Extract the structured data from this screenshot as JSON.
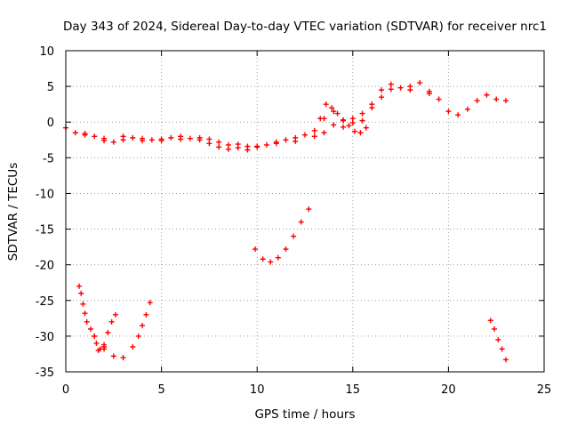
{
  "chart_data": {
    "type": "scatter",
    "title": "Day 343 of 2024, Sidereal Day-to-day VTEC variation (SDTVAR) for receiver nrc1",
    "xlabel": "GPS time / hours",
    "ylabel": "SDTVAR / TECUs",
    "xlim": [
      0,
      25
    ],
    "ylim": [
      -35,
      10
    ],
    "xticks": [
      0,
      5,
      10,
      15,
      20,
      25
    ],
    "yticks": [
      10,
      5,
      0,
      -5,
      -10,
      -15,
      -20,
      -25,
      -30,
      -35
    ],
    "grid": true,
    "marker": "+",
    "marker_color": "#ff0000",
    "series": [
      {
        "name": "main-band-a",
        "x": [
          0.0,
          0.5,
          1.0,
          1.5,
          2.0,
          2.5,
          3.0,
          3.5,
          4.0,
          4.5,
          5.0,
          5.5,
          6.0,
          6.5,
          7.0,
          7.5,
          8.0,
          8.5,
          9.0,
          9.5,
          10.0,
          10.5,
          11.0,
          11.5,
          12.0,
          12.5,
          13.0,
          13.5,
          14.0,
          14.5,
          15.0,
          15.5,
          16.0,
          16.5,
          17.0,
          17.5,
          18.0,
          18.5,
          19.0,
          19.5,
          20.0,
          20.5,
          21.0,
          21.5,
          22.0,
          22.5,
          23.0
        ],
        "y": [
          -0.8,
          -1.5,
          -1.8,
          -2.0,
          -2.3,
          -2.8,
          -2.5,
          -2.2,
          -2.3,
          -2.5,
          -2.4,
          -2.2,
          -2.0,
          -2.3,
          -2.5,
          -3.0,
          -3.5,
          -3.8,
          -3.6,
          -3.9,
          -3.5,
          -3.2,
          -2.8,
          -2.5,
          -2.2,
          -1.8,
          -1.2,
          0.5,
          1.5,
          0.2,
          0.5,
          1.2,
          2.5,
          4.5,
          5.3,
          4.8,
          4.5,
          5.5,
          4.3,
          3.2,
          1.5,
          1.0,
          1.8,
          3.0,
          3.8,
          3.2,
          3.0
        ]
      },
      {
        "name": "main-band-b",
        "x": [
          1.0,
          2.0,
          3.0,
          4.0,
          5.0,
          6.0,
          7.0,
          7.5,
          8.0,
          8.5,
          9.0,
          9.5,
          10.0,
          11.0,
          12.0,
          13.0,
          13.5,
          14.0,
          14.5,
          15.0,
          15.5,
          16.0,
          16.5,
          17.0,
          18.0,
          19.0
        ],
        "y": [
          -1.6,
          -2.6,
          -2.0,
          -2.6,
          -2.6,
          -2.4,
          -2.2,
          -2.4,
          -2.8,
          -3.2,
          -3.1,
          -3.4,
          -3.4,
          -3.0,
          -2.7,
          -2.0,
          -1.5,
          -0.4,
          -0.7,
          -0.1,
          0.2,
          2.0,
          3.5,
          4.6,
          5.0,
          4.0
        ]
      },
      {
        "name": "upper-wisp",
        "x": [
          13.3,
          13.6,
          13.9,
          14.2,
          14.5,
          14.8,
          15.1,
          15.4,
          15.7
        ],
        "y": [
          0.5,
          2.5,
          2.0,
          1.2,
          0.3,
          -0.5,
          -1.3,
          -1.5,
          -0.8
        ]
      },
      {
        "name": "mid-curve",
        "x": [
          9.9,
          10.3,
          10.7,
          11.1,
          11.5,
          11.9,
          12.3,
          12.7
        ],
        "y": [
          -17.8,
          -19.2,
          -19.6,
          -19.0,
          -17.8,
          -16.0,
          -14.0,
          -12.2
        ]
      },
      {
        "name": "left-loop-1",
        "x": [
          0.7,
          0.8,
          0.9,
          1.0,
          1.1,
          1.3,
          1.5,
          1.6,
          1.8,
          2.0
        ],
        "y": [
          -23.0,
          -24.0,
          -25.5,
          -26.8,
          -28.0,
          -29.0,
          -30.0,
          -31.0,
          -31.8,
          -31.8
        ]
      },
      {
        "name": "left-loop-2",
        "x": [
          1.7,
          2.0,
          2.2,
          2.4,
          2.6
        ],
        "y": [
          -32.0,
          -31.2,
          -29.5,
          -28.0,
          -27.0
        ]
      },
      {
        "name": "left-loop-3",
        "x": [
          1.5,
          2.0,
          2.5,
          3.0,
          3.5,
          3.8,
          4.0,
          4.2,
          4.4
        ],
        "y": [
          -30.0,
          -31.5,
          -32.8,
          -33.0,
          -31.5,
          -30.0,
          -28.5,
          -27.0,
          -25.3
        ]
      },
      {
        "name": "right-tail",
        "x": [
          22.2,
          22.4,
          22.6,
          22.8,
          23.0
        ],
        "y": [
          -27.8,
          -29.0,
          -30.5,
          -31.8,
          -33.3
        ]
      }
    ]
  }
}
